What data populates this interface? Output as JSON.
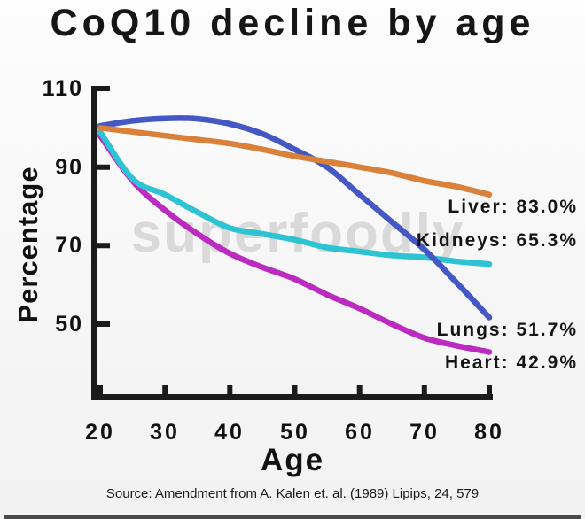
{
  "title": "CoQ10 decline by age",
  "watermark": "superfoodly",
  "source": "Source: Amendment from A. Kalen et. al. (1989) Lipips, 24, 579",
  "chart_data": {
    "type": "line",
    "title": "CoQ10 decline by age",
    "xlabel": "Age",
    "ylabel": "Percentage",
    "x_ticks": [
      20,
      30,
      40,
      50,
      60,
      70,
      80
    ],
    "y_ticks": [
      110,
      90,
      70,
      50
    ],
    "xlim": [
      20,
      80
    ],
    "ylim_visible": [
      31,
      111
    ],
    "grid": false,
    "legend_position": "inline-right-annotations",
    "axis_color": "#1b1b1b",
    "x": [
      20,
      25,
      30,
      35,
      40,
      45,
      50,
      55,
      60,
      65,
      70,
      75,
      80
    ],
    "series": [
      {
        "name": "Liver",
        "end_value": 83.0,
        "label": "Liver: 83.0%",
        "color": "#D9813B",
        "values": [
          100,
          99,
          98,
          97,
          96,
          94.5,
          92.8,
          91.4,
          90,
          88.5,
          86.5,
          85,
          83
        ]
      },
      {
        "name": "Kidneys",
        "end_value": 65.3,
        "label": "Kidneys: 65.3%",
        "color": "#2EC3D2",
        "values": [
          99,
          87,
          83,
          78.5,
          74.5,
          73,
          71.5,
          69.5,
          68.5,
          67.5,
          67,
          66,
          65.3
        ]
      },
      {
        "name": "Lungs",
        "end_value": 51.7,
        "label": "Lungs: 51.7%",
        "color": "#4457C5",
        "values": [
          100.5,
          101.8,
          102.4,
          102.3,
          101,
          98.5,
          94.5,
          90,
          83,
          76,
          69,
          60.5,
          51.7
        ]
      },
      {
        "name": "Heart",
        "end_value": 42.9,
        "label": "Heart: 42.9%",
        "color": "#BB2BC0",
        "values": [
          98,
          86.5,
          79,
          73,
          68,
          64.5,
          61.5,
          57.5,
          54,
          50,
          46.5,
          44.5,
          42.9
        ]
      }
    ]
  }
}
